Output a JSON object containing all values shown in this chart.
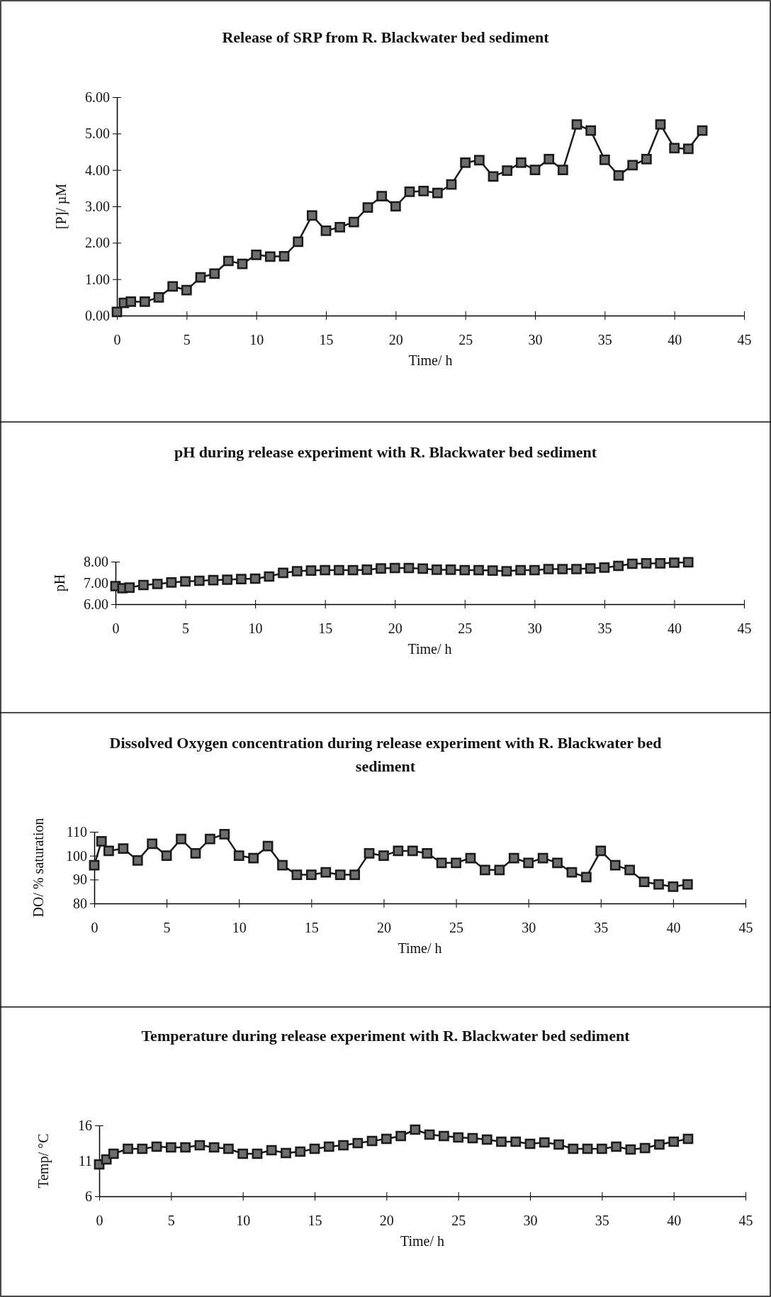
{
  "chart_data": [
    {
      "type": "line",
      "title": "Release of SRP from R. Blackwater bed sediment",
      "xlabel": "Time/ h",
      "ylabel": "[P]/ µM",
      "marker": "square",
      "line_style": "solid",
      "grid": false,
      "x": [
        0,
        0.5,
        1,
        2,
        3,
        4,
        5,
        6,
        7,
        8,
        9,
        10,
        11,
        12,
        13,
        14,
        15,
        16,
        17,
        18,
        19,
        20,
        21,
        22,
        23,
        24,
        25,
        26,
        27,
        28,
        29,
        30,
        31,
        32,
        33,
        34,
        35,
        36,
        37,
        38,
        39,
        40,
        41,
        42
      ],
      "series": [
        {
          "color": "#1a1a1a",
          "values": [
            0.1,
            0.35,
            0.38,
            0.38,
            0.5,
            0.8,
            0.7,
            1.05,
            1.15,
            1.5,
            1.42,
            1.67,
            1.62,
            1.63,
            2.03,
            2.75,
            2.33,
            2.43,
            2.57,
            2.97,
            3.28,
            3.0,
            3.4,
            3.42,
            3.37,
            3.6,
            4.2,
            4.27,
            3.82,
            3.98,
            4.2,
            4.0,
            4.3,
            4.0,
            5.25,
            5.08,
            4.28,
            3.85,
            4.13,
            4.3,
            5.25,
            4.6,
            4.58,
            5.08
          ]
        }
      ],
      "xlim": [
        0,
        45
      ],
      "xticks": [
        0,
        5,
        10,
        15,
        20,
        25,
        30,
        35,
        40,
        45
      ],
      "ylim": [
        0,
        6
      ],
      "yticks": [
        {
          "value": 0,
          "label": "0.00"
        },
        {
          "value": 1,
          "label": "1.00"
        },
        {
          "value": 2,
          "label": "2.00"
        },
        {
          "value": 3,
          "label": "3.00"
        },
        {
          "value": 4,
          "label": "4.00"
        },
        {
          "value": 5,
          "label": "5.00"
        },
        {
          "value": 6,
          "label": "6.00"
        }
      ]
    },
    {
      "type": "line",
      "title": "pH during release experiment with R. Blackwater bed sediment",
      "xlabel": "Time/ h",
      "ylabel": "pH",
      "marker": "square",
      "line_style": "solid",
      "grid": false,
      "x": [
        0,
        0.5,
        1,
        2,
        3,
        4,
        5,
        6,
        7,
        8,
        9,
        10,
        11,
        12,
        13,
        14,
        15,
        16,
        17,
        18,
        19,
        20,
        21,
        22,
        23,
        24,
        25,
        26,
        27,
        28,
        29,
        30,
        31,
        32,
        33,
        34,
        35,
        36,
        37,
        38,
        39,
        40,
        41
      ],
      "series": [
        {
          "color": "#1a1a1a",
          "values": [
            6.85,
            6.75,
            6.78,
            6.9,
            6.95,
            7.02,
            7.07,
            7.1,
            7.13,
            7.15,
            7.18,
            7.2,
            7.3,
            7.47,
            7.55,
            7.58,
            7.6,
            7.6,
            7.6,
            7.62,
            7.68,
            7.7,
            7.7,
            7.67,
            7.62,
            7.62,
            7.6,
            7.6,
            7.58,
            7.55,
            7.6,
            7.6,
            7.65,
            7.65,
            7.65,
            7.68,
            7.72,
            7.8,
            7.9,
            7.92,
            7.92,
            7.95,
            7.97
          ]
        }
      ],
      "xlim": [
        0,
        45
      ],
      "xticks": [
        0,
        5,
        10,
        15,
        20,
        25,
        30,
        35,
        40,
        45
      ],
      "ylim": [
        6,
        8
      ],
      "yticks": [
        {
          "value": 6,
          "label": "6.00"
        },
        {
          "value": 7,
          "label": "7.00"
        },
        {
          "value": 8,
          "label": "8.00"
        }
      ]
    },
    {
      "type": "line",
      "title": "Dissolved Oxygen concentration during release experiment with R. Blackwater bed sediment",
      "xlabel": "Time/ h",
      "ylabel": "DO/ % saturation",
      "marker": "square",
      "line_style": "solid",
      "grid": false,
      "x": [
        0,
        0.5,
        1,
        2,
        3,
        4,
        5,
        6,
        7,
        8,
        9,
        10,
        11,
        12,
        13,
        14,
        15,
        16,
        17,
        18,
        19,
        20,
        21,
        22,
        23,
        24,
        25,
        26,
        27,
        28,
        29,
        30,
        31,
        32,
        33,
        34,
        35,
        36,
        37,
        38,
        39,
        40,
        41
      ],
      "series": [
        {
          "color": "#1a1a1a",
          "values": [
            96,
            106,
            102,
            103,
            98,
            105,
            100,
            107,
            101,
            107,
            109,
            100,
            99,
            104,
            96,
            92,
            92,
            93,
            92,
            92,
            101,
            100,
            102,
            102,
            101,
            97,
            97,
            99,
            94,
            94,
            99,
            97,
            99,
            97,
            93,
            91,
            102,
            96,
            94,
            89,
            88,
            87,
            88
          ]
        }
      ],
      "xlim": [
        0,
        45
      ],
      "xticks": [
        0,
        5,
        10,
        15,
        20,
        25,
        30,
        35,
        40,
        45
      ],
      "ylim": [
        80,
        110
      ],
      "yticks": [
        80,
        90,
        100,
        110
      ]
    },
    {
      "type": "line",
      "title": "Temperature during release experiment with R. Blackwater bed sediment",
      "xlabel": "Time/ h",
      "ylabel": "Temp/ °C",
      "marker": "square",
      "line_style": "solid",
      "grid": false,
      "x": [
        0,
        0.5,
        1,
        2,
        3,
        4,
        5,
        6,
        7,
        8,
        9,
        10,
        11,
        12,
        13,
        14,
        15,
        16,
        17,
        18,
        19,
        20,
        21,
        22,
        23,
        24,
        25,
        26,
        27,
        28,
        29,
        30,
        31,
        32,
        33,
        34,
        35,
        36,
        37,
        38,
        39,
        40,
        41
      ],
      "series": [
        {
          "color": "#1a1a1a",
          "values": [
            10.5,
            11.2,
            12,
            12.7,
            12.7,
            13,
            12.9,
            12.9,
            13.2,
            12.9,
            12.7,
            12,
            12,
            12.5,
            12.1,
            12.3,
            12.7,
            13,
            13.2,
            13.5,
            13.8,
            14.1,
            14.5,
            15.4,
            14.7,
            14.5,
            14.3,
            14.2,
            14,
            13.7,
            13.7,
            13.4,
            13.6,
            13.3,
            12.7,
            12.7,
            12.7,
            13,
            12.6,
            12.8,
            13.3,
            13.7,
            14.1
          ]
        }
      ],
      "xlim": [
        0,
        45
      ],
      "xticks": [
        0,
        5,
        10,
        15,
        20,
        25,
        30,
        35,
        40,
        45
      ],
      "ylim": [
        6,
        16
      ],
      "yticks": [
        6,
        11,
        16
      ]
    }
  ]
}
